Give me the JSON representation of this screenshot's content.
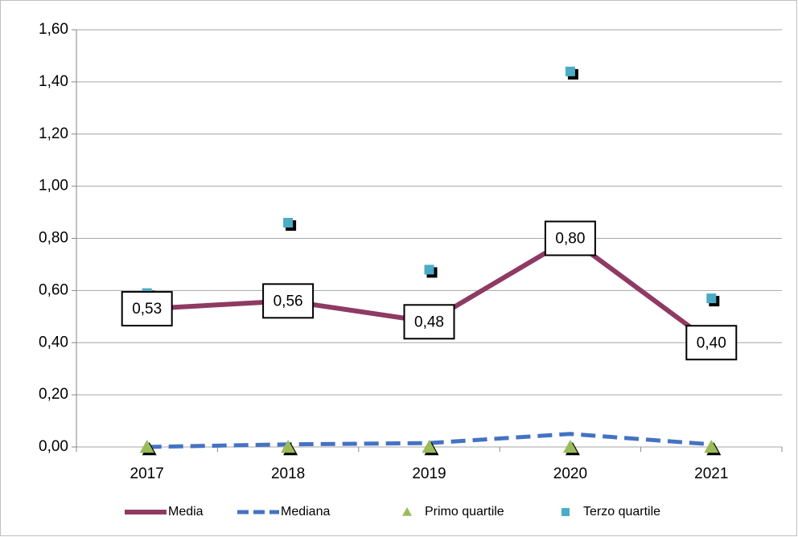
{
  "chart_data": {
    "type": "line",
    "categories": [
      "2017",
      "2018",
      "2019",
      "2020",
      "2021"
    ],
    "series": [
      {
        "name": "Media",
        "color": "#8e3a63",
        "line": "solid",
        "values": [
          0.53,
          0.56,
          0.48,
          0.8,
          0.4
        ],
        "value_labels": [
          "0,53",
          "0,56",
          "0,48",
          "0,80",
          "0,40"
        ]
      },
      {
        "name": "Mediana",
        "color": "#4472c4",
        "line": "dashed",
        "values": [
          0.0,
          0.01,
          0.015,
          0.05,
          0.01
        ]
      },
      {
        "name": "Primo quartile",
        "color": "#9bbb59",
        "marker": "triangle",
        "values": [
          0,
          0,
          0,
          0,
          0
        ]
      },
      {
        "name": "Terzo quartile",
        "color": "#4bacc6",
        "marker": "square",
        "values": [
          0.59,
          0.86,
          0.68,
          1.44,
          0.57
        ]
      }
    ],
    "ylim": [
      0,
      1.6
    ],
    "yticks": [
      {
        "value": 0,
        "label": "0,00"
      },
      {
        "value": 0.2,
        "label": "0,20"
      },
      {
        "value": 0.4,
        "label": "0,40"
      },
      {
        "value": 0.6,
        "label": "0,60"
      },
      {
        "value": 0.8,
        "label": "0,80"
      },
      {
        "value": 1.0,
        "label": "1,00"
      },
      {
        "value": 1.2,
        "label": "1,20"
      },
      {
        "value": 1.4,
        "label": "1,40"
      },
      {
        "value": 1.6,
        "label": "1,60"
      }
    ],
    "grid": true,
    "legend": "bottom"
  }
}
